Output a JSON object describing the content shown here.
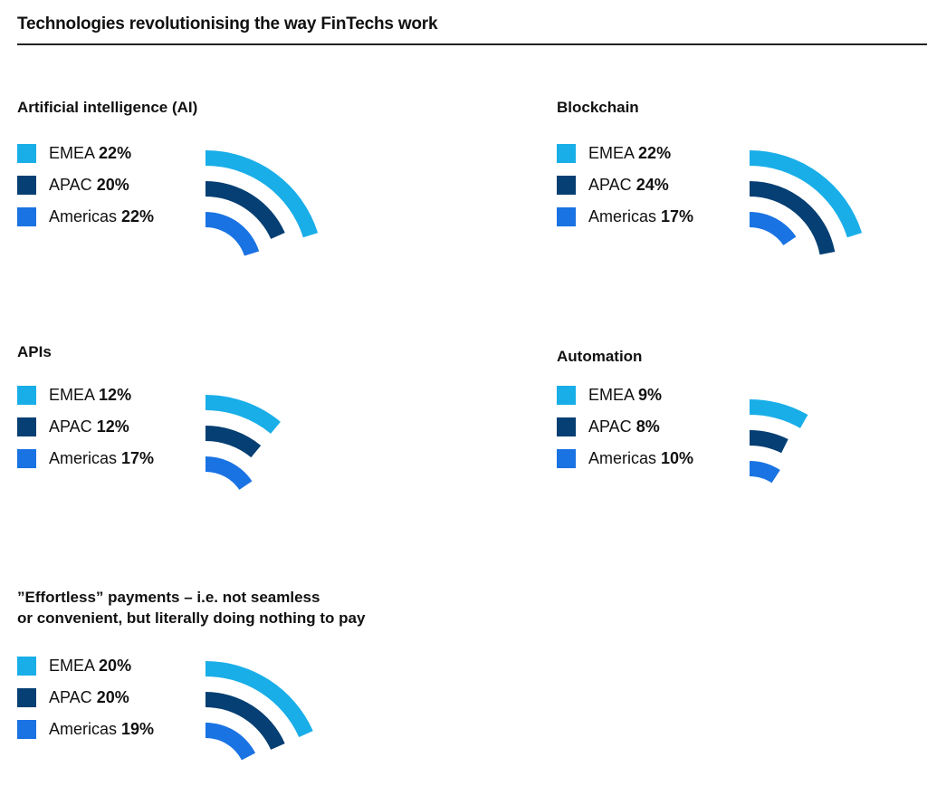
{
  "title": "Technologies revolutionising the way FinTechs work",
  "colors": {
    "EMEA": "#19aee8",
    "APAC": "#063f73",
    "Americas": "#1a73e3"
  },
  "chart_data": [
    {
      "type": "arc",
      "title": "Artificial intelligence (AI)",
      "series": [
        {
          "name": "EMEA",
          "label": "22%",
          "value": 22
        },
        {
          "name": "APAC",
          "label": "20%",
          "value": 20
        },
        {
          "name": "Americas",
          "label": "22%",
          "value": 22
        }
      ]
    },
    {
      "type": "arc",
      "title": "Blockchain",
      "series": [
        {
          "name": "EMEA",
          "label": "22%",
          "value": 22
        },
        {
          "name": "APAC",
          "label": "24%",
          "value": 24
        },
        {
          "name": "Americas",
          "label": "17%",
          "value": 17
        }
      ]
    },
    {
      "type": "arc",
      "title": "APIs",
      "series": [
        {
          "name": "EMEA",
          "label": "12%",
          "value": 12
        },
        {
          "name": "APAC",
          "label": "12%",
          "value": 12
        },
        {
          "name": "Americas",
          "label": "17%",
          "value": 17
        }
      ]
    },
    {
      "type": "arc",
      "title": "Automation",
      "series": [
        {
          "name": "EMEA",
          "label": "9%",
          "value": 9
        },
        {
          "name": "APAC",
          "label": "8%",
          "value": 8
        },
        {
          "name": "Americas",
          "label": "10%",
          "value": 10
        }
      ]
    },
    {
      "type": "arc",
      "title": "”Effortless” payments – i.e. not seamless\nor convenient, but literally doing nothing to pay",
      "series": [
        {
          "name": "EMEA",
          "label": "20%",
          "value": 20
        },
        {
          "name": "APAC",
          "label": "20%",
          "value": 20
        },
        {
          "name": "Americas",
          "label": "19%",
          "value": 19
        }
      ]
    }
  ]
}
